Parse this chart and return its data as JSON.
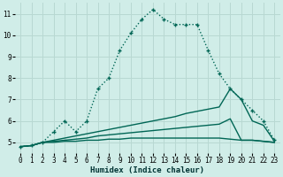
{
  "title": "",
  "xlabel": "Humidex (Indice chaleur)",
  "ylabel": "",
  "bg_color": "#d0ede8",
  "grid_color": "#b8d8d2",
  "line_color": "#006655",
  "xlim": [
    -0.5,
    23.5
  ],
  "ylim": [
    4.5,
    11.5
  ],
  "xticks": [
    0,
    1,
    2,
    3,
    4,
    5,
    6,
    7,
    8,
    9,
    10,
    11,
    12,
    13,
    14,
    15,
    16,
    17,
    18,
    19,
    20,
    21,
    22,
    23
  ],
  "yticks": [
    5,
    6,
    7,
    8,
    9,
    10,
    11
  ],
  "series": [
    {
      "x": [
        0,
        1,
        2,
        3,
        4,
        5,
        6,
        7,
        8,
        9,
        10,
        11,
        12,
        13,
        14,
        15,
        16,
        17,
        18,
        19,
        20,
        21,
        22,
        23
      ],
      "y": [
        4.8,
        4.85,
        5.0,
        5.5,
        6.0,
        5.5,
        6.0,
        7.5,
        8.0,
        9.3,
        10.1,
        10.75,
        11.2,
        10.75,
        10.5,
        10.5,
        10.5,
        9.3,
        8.2,
        7.5,
        7.0,
        6.5,
        6.0,
        5.1
      ],
      "marker": true,
      "linewidth": 1.0,
      "linestyle": ":"
    },
    {
      "x": [
        0,
        1,
        2,
        3,
        4,
        5,
        6,
        7,
        8,
        9,
        10,
        11,
        12,
        13,
        14,
        15,
        16,
        17,
        18,
        19,
        20,
        21,
        22,
        23
      ],
      "y": [
        4.8,
        4.85,
        5.0,
        5.5,
        6.0,
        5.5,
        6.0,
        7.5,
        8.0,
        9.3,
        10.1,
        10.75,
        11.2,
        10.75,
        10.5,
        10.5,
        10.5,
        9.3,
        8.2,
        7.5,
        7.0,
        6.5,
        6.0,
        5.1
      ],
      "marker": false,
      "linewidth": 1.0,
      "linestyle": "-"
    },
    {
      "x": [
        0,
        1,
        2,
        3,
        4,
        5,
        6,
        7,
        8,
        9,
        10,
        11,
        12,
        13,
        14,
        15,
        16,
        17,
        18,
        19,
        20,
        21,
        22,
        23
      ],
      "y": [
        4.8,
        4.85,
        5.0,
        5.1,
        5.2,
        5.3,
        5.4,
        5.5,
        5.6,
        5.7,
        5.8,
        5.9,
        6.0,
        6.1,
        6.2,
        6.35,
        6.45,
        6.55,
        6.65,
        7.5,
        7.0,
        6.0,
        5.8,
        5.05
      ],
      "marker": false,
      "linewidth": 1.0,
      "linestyle": "-"
    },
    {
      "x": [
        0,
        1,
        2,
        3,
        4,
        5,
        6,
        7,
        8,
        9,
        10,
        11,
        12,
        13,
        14,
        15,
        16,
        17,
        18,
        19,
        20,
        21,
        22,
        23
      ],
      "y": [
        4.8,
        4.85,
        5.0,
        5.05,
        5.1,
        5.15,
        5.2,
        5.3,
        5.35,
        5.4,
        5.45,
        5.5,
        5.55,
        5.6,
        5.65,
        5.7,
        5.75,
        5.8,
        5.85,
        6.1,
        5.1,
        5.1,
        5.05,
        5.0
      ],
      "marker": false,
      "linewidth": 1.0,
      "linestyle": "-"
    },
    {
      "x": [
        0,
        1,
        2,
        3,
        4,
        5,
        6,
        7,
        8,
        9,
        10,
        11,
        12,
        13,
        14,
        15,
        16,
        17,
        18,
        19,
        20,
        21,
        22,
        23
      ],
      "y": [
        4.8,
        4.85,
        5.0,
        5.0,
        5.05,
        5.05,
        5.1,
        5.1,
        5.15,
        5.15,
        5.2,
        5.2,
        5.2,
        5.2,
        5.2,
        5.2,
        5.2,
        5.2,
        5.2,
        5.15,
        5.1,
        5.1,
        5.05,
        5.0
      ],
      "marker": false,
      "linewidth": 1.0,
      "linestyle": "-"
    }
  ]
}
